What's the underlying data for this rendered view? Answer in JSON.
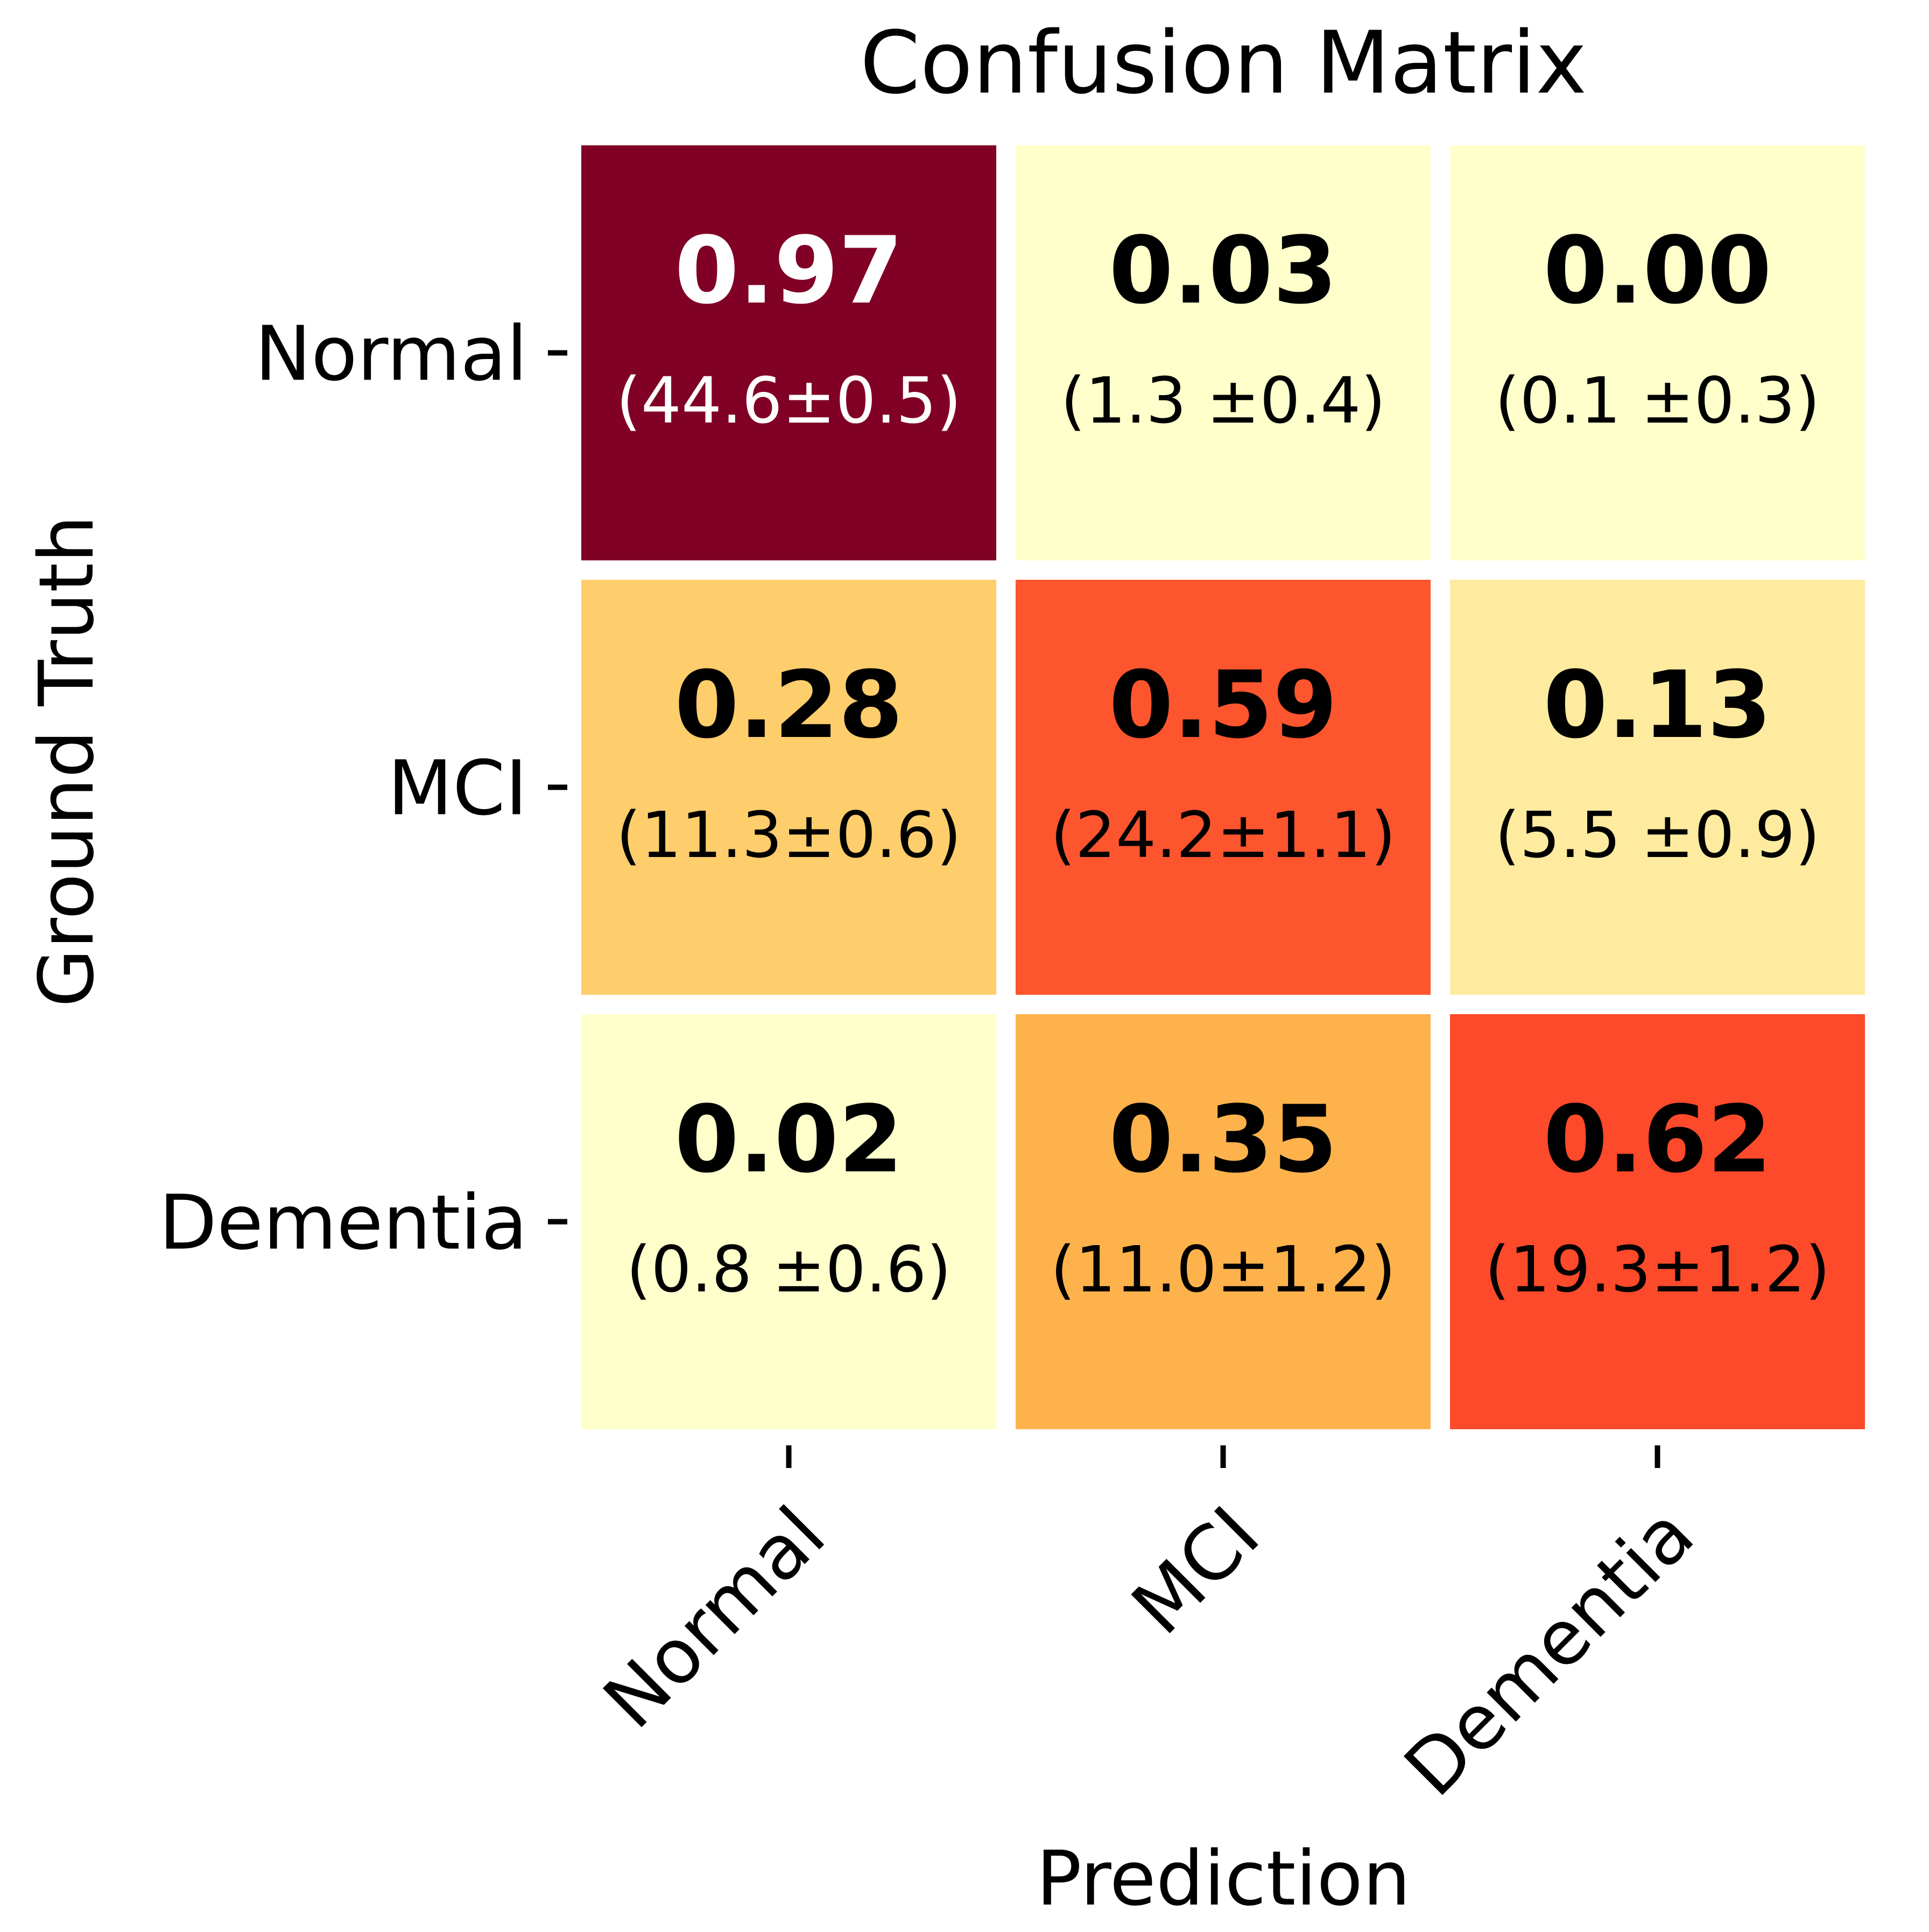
{
  "chart_data": {
    "type": "heatmap",
    "title": "Confusion Matrix",
    "xlabel": "Prediction",
    "ylabel": "Ground Truth",
    "x_categories": [
      "Normal",
      "MCI",
      "Dementia"
    ],
    "y_categories": [
      "Normal",
      "MCI",
      "Dementia"
    ],
    "values": [
      [
        0.97,
        0.03,
        0.0
      ],
      [
        0.28,
        0.59,
        0.13
      ],
      [
        0.02,
        0.35,
        0.62
      ]
    ],
    "value_labels": [
      [
        "0.97",
        "0.03",
        "0.00"
      ],
      [
        "0.28",
        "0.59",
        "0.13"
      ],
      [
        "0.02",
        "0.35",
        "0.62"
      ]
    ],
    "count_labels": [
      [
        "(44.6±0.5)",
        "(1.3 ±0.4)",
        "(0.1 ±0.3)"
      ],
      [
        "(11.3±0.6)",
        "(24.2±1.1)",
        "(5.5 ±0.9)"
      ],
      [
        "(0.8 ±0.6)",
        "(11.0±1.2)",
        "(19.3±1.2)"
      ]
    ],
    "colormap": "YlOrRd",
    "vmin": 0.0,
    "vmax": 0.97,
    "cell_colors": [
      [
        "#800026",
        "#ffffcc",
        "#ffffcc"
      ],
      [
        "#fecd6c",
        "#fd552e",
        "#ffeb9f"
      ],
      [
        "#ffffcc",
        "#feb24c",
        "#fc4a2a"
      ]
    ],
    "text_colors": [
      [
        "#ffffff",
        "#000000",
        "#000000"
      ],
      [
        "#000000",
        "#000000",
        "#000000"
      ],
      [
        "#000000",
        "#000000",
        "#000000"
      ]
    ],
    "grid_color": "#ffffff"
  }
}
